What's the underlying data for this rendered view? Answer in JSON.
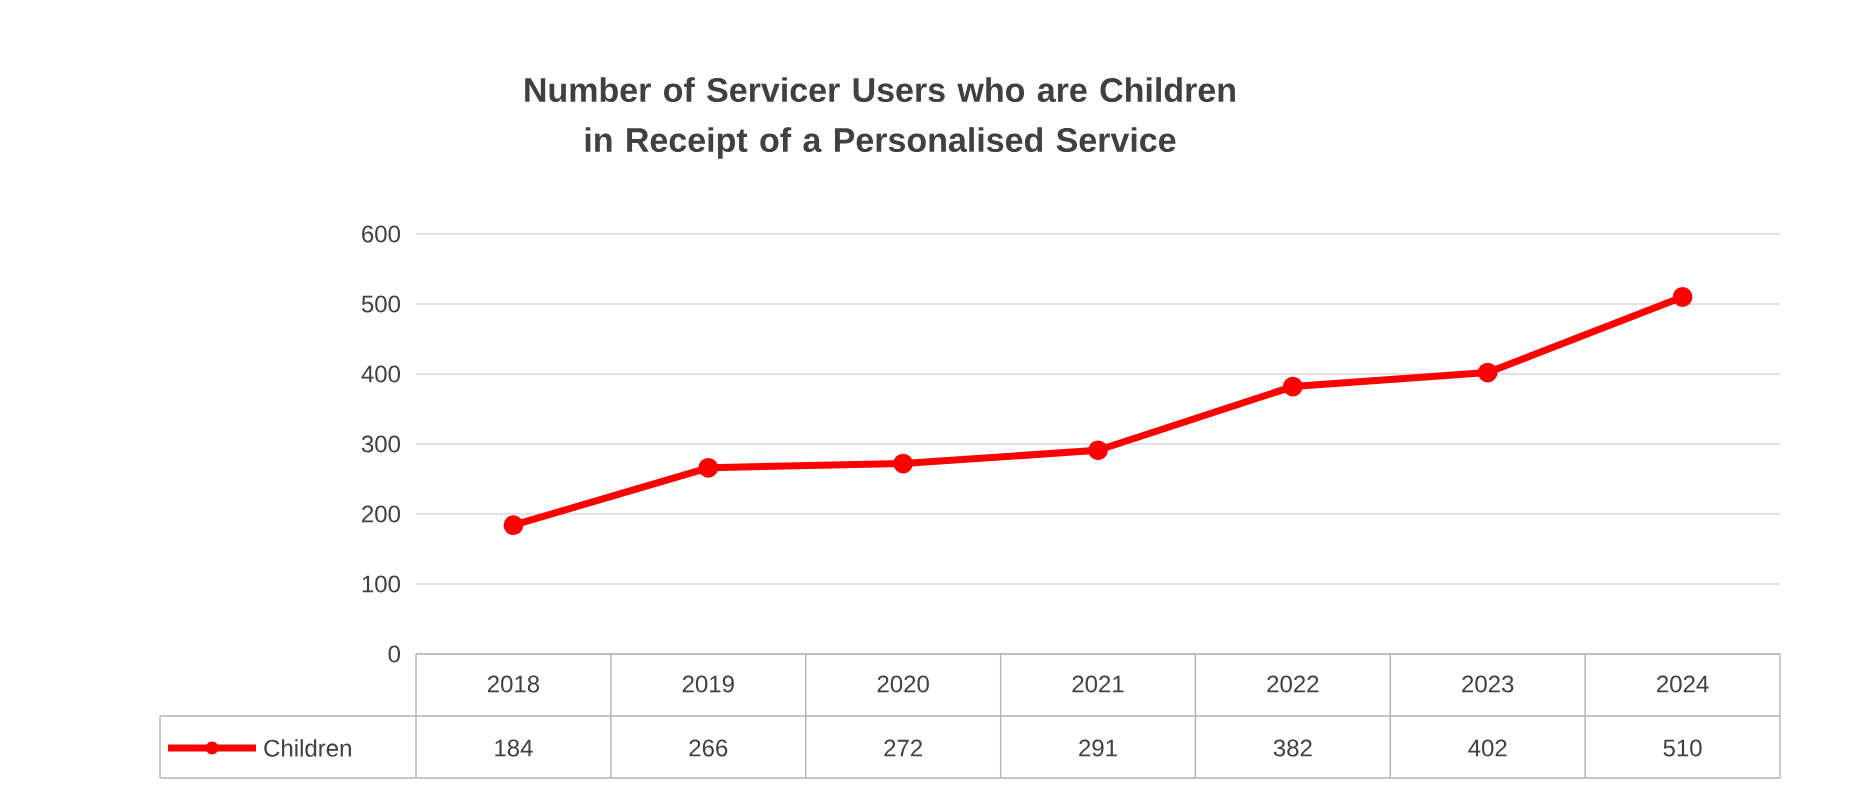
{
  "chart_data": {
    "type": "line",
    "title": "Number of Servicer Users who are Children in Receipt of a Personalised Service",
    "categories": [
      "2018",
      "2019",
      "2020",
      "2021",
      "2022",
      "2023",
      "2024"
    ],
    "series": [
      {
        "name": "Children",
        "color": "#ff0000",
        "values": [
          184,
          266,
          272,
          291,
          382,
          402,
          510
        ]
      }
    ],
    "ylim": [
      0,
      600
    ],
    "yticks": [
      0,
      100,
      200,
      300,
      400,
      500,
      600
    ],
    "grid": "y",
    "marker": "circle",
    "line_style": "solid",
    "data_labels": true
  }
}
